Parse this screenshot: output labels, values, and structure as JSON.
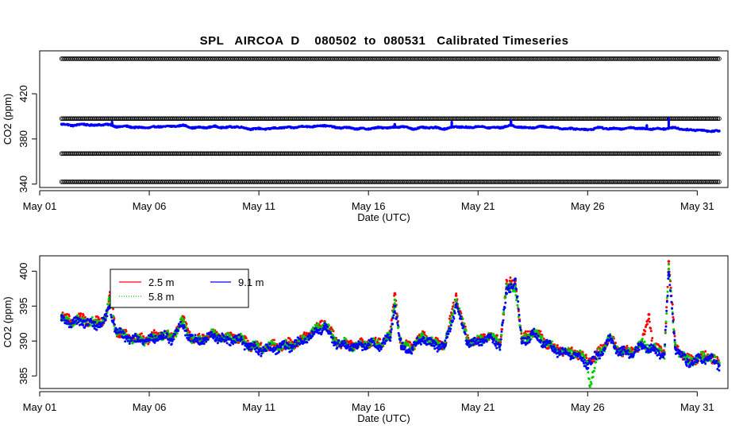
{
  "title": "SPL   AIRCOA  D    080502  to  080531   Calibrated Timeseries",
  "colors": {
    "reference": "#000000",
    "series_2_5": "#ff0000",
    "series_5_8": "#00cc00",
    "series_9_1": "#0000ff"
  },
  "chart_data": [
    {
      "type": "scatter",
      "title": "SPL   AIRCOA  D    080502  to  080531   Calibrated Timeseries",
      "xlabel": "Date (UTC)",
      "ylabel": "CO2 (ppm)",
      "x_ticks": [
        "May 01",
        "May 06",
        "May 11",
        "May 16",
        "May 21",
        "May 26",
        "May 31"
      ],
      "x_tick_days": [
        1,
        6,
        11,
        16,
        21,
        26,
        31
      ],
      "xlim": [
        1,
        32.4
      ],
      "y_ticks": [
        340,
        380,
        420
      ],
      "ylim": [
        337,
        458
      ],
      "reference_levels": [
        342,
        367,
        398,
        451
      ],
      "reference_x_range": [
        2,
        32
      ],
      "series": [
        {
          "color": "blue",
          "x": [
            2,
            2.5,
            3,
            3.5,
            4,
            4.5,
            5,
            5.5,
            6,
            6.5,
            7,
            7.5,
            8,
            8.5,
            9,
            9.5,
            10,
            10.5,
            11,
            11.5,
            12,
            12.5,
            13,
            13.5,
            14,
            14.5,
            15,
            15.5,
            16,
            16.5,
            17,
            17.5,
            18,
            18.5,
            19,
            19.5,
            20,
            20.5,
            21,
            21.5,
            22,
            22.5,
            23,
            23.5,
            24,
            24.5,
            25,
            25.5,
            26,
            26.5,
            27,
            27.5,
            28,
            28.5,
            29,
            29.5,
            30,
            30.5,
            31,
            31.5,
            32
          ],
          "y": [
            393,
            392,
            393,
            392,
            393,
            391,
            391,
            390,
            390,
            391,
            391,
            392,
            390,
            390,
            391,
            390,
            391,
            389,
            389,
            389,
            390,
            390,
            391,
            391,
            392,
            390,
            390,
            389,
            389,
            390,
            390,
            391,
            389,
            390,
            390,
            389,
            391,
            390,
            391,
            390,
            390,
            392,
            390,
            390,
            391,
            390,
            389,
            389,
            388,
            390,
            389,
            389,
            390,
            389,
            389,
            389,
            390,
            388,
            388,
            387,
            387
          ]
        }
      ],
      "spikes": [
        {
          "x": 4.3,
          "y": 395
        },
        {
          "x": 17.2,
          "y": 393
        },
        {
          "x": 19.8,
          "y": 395
        },
        {
          "x": 22.5,
          "y": 396
        },
        {
          "x": 28.7,
          "y": 392
        },
        {
          "x": 29.7,
          "y": 398
        }
      ]
    },
    {
      "type": "scatter",
      "xlabel": "Date (UTC)",
      "ylabel": "CO2 (ppm)",
      "x_ticks": [
        "May 01",
        "May 06",
        "May 11",
        "May 16",
        "May 21",
        "May 26",
        "May 31"
      ],
      "x_tick_days": [
        1,
        6,
        11,
        16,
        21,
        26,
        31
      ],
      "xlim": [
        1,
        32.4
      ],
      "y_ticks": [
        385,
        390,
        395,
        400
      ],
      "ylim": [
        383.2,
        402.2
      ],
      "legend_position": "top-left",
      "series": [
        {
          "name": "2.5 m",
          "color": "red",
          "x": [
            2,
            2.5,
            3,
            3.5,
            4,
            4.2,
            4.5,
            5,
            5.5,
            6,
            6.5,
            7,
            7.5,
            8,
            8.5,
            9,
            9.5,
            10,
            10.5,
            11,
            11.5,
            12,
            12.5,
            13,
            13.5,
            14,
            14.5,
            15,
            15.5,
            16,
            16.5,
            17,
            17.2,
            17.5,
            18,
            18.5,
            19,
            19.5,
            20,
            20.5,
            21,
            21.5,
            22,
            22.3,
            22.7,
            23,
            23.5,
            24,
            24.5,
            25,
            25.5,
            26,
            26.5,
            27,
            27.5,
            28,
            28.5,
            28.8,
            29,
            29.5,
            29.7,
            30,
            30.5,
            31,
            31.5,
            32
          ],
          "y": [
            393.5,
            393,
            393.2,
            392.5,
            393.4,
            396.5,
            391.5,
            390.8,
            390.2,
            390.4,
            391,
            390.6,
            393,
            390.2,
            390.5,
            391,
            390.4,
            390.6,
            389.6,
            389,
            389.2,
            389.4,
            389.6,
            390.2,
            391.5,
            392.8,
            390,
            389.6,
            389.4,
            389.9,
            389.6,
            391,
            396.8,
            389.3,
            389.2,
            391,
            389.6,
            389.6,
            396.5,
            390.3,
            390,
            391,
            389.7,
            398.2,
            398.6,
            390,
            391.5,
            390.1,
            389,
            388.5,
            388.4,
            387,
            388.3,
            390.4,
            388.7,
            388.4,
            389.7,
            393.8,
            389,
            388.4,
            401.4,
            389.4,
            387.3,
            387.5,
            388,
            386.8
          ]
        },
        {
          "name": "5.8 m",
          "color": "green",
          "x": [
            2,
            2.5,
            3,
            3.5,
            4,
            4.2,
            4.5,
            5,
            5.5,
            6,
            6.5,
            7,
            7.5,
            8,
            8.5,
            9,
            9.5,
            10,
            10.5,
            11,
            11.5,
            12,
            12.5,
            13,
            13.5,
            14,
            14.5,
            15,
            15.5,
            16,
            16.5,
            17,
            17.2,
            17.5,
            18,
            18.5,
            19,
            19.5,
            20,
            20.5,
            21,
            21.5,
            22,
            22.3,
            22.7,
            23,
            23.5,
            24,
            24.5,
            25,
            25.5,
            26,
            26.1,
            26.5,
            27,
            27.5,
            28,
            28.5,
            29,
            29.5,
            29.7,
            30,
            30.5,
            31,
            31.5,
            32
          ],
          "y": [
            393.2,
            392.8,
            393,
            392.4,
            393.2,
            395.8,
            391.4,
            390.7,
            390.1,
            390.3,
            390.9,
            390.5,
            392.6,
            390.1,
            390.4,
            390.9,
            390.3,
            390.5,
            389.5,
            388.9,
            389.1,
            389.3,
            389.5,
            390.1,
            391.3,
            392.5,
            389.9,
            389.5,
            389.3,
            389.8,
            389.5,
            390.8,
            395.9,
            389.2,
            389.1,
            390.8,
            389.5,
            389.5,
            395.9,
            390.2,
            389.9,
            390.8,
            389.6,
            397.5,
            397.9,
            389.9,
            391.3,
            390,
            388.9,
            388.4,
            388.3,
            386.9,
            383.6,
            388.2,
            390.3,
            388.6,
            388.3,
            389.5,
            388.9,
            388.3,
            400.3,
            389.3,
            387.2,
            387.4,
            387.9,
            386.7
          ]
        },
        {
          "name": "9.1 m",
          "color": "blue",
          "x": [
            2,
            2.5,
            3,
            3.5,
            4,
            4.2,
            4.5,
            5,
            5.5,
            6,
            6.5,
            7,
            7.5,
            8,
            8.5,
            9,
            9.5,
            10,
            10.5,
            11,
            11.5,
            12,
            12.5,
            13,
            13.5,
            14,
            14.5,
            15,
            15.5,
            16,
            16.5,
            17,
            17.2,
            17.5,
            18,
            18.5,
            19,
            19.5,
            20,
            20.5,
            21,
            21.5,
            22,
            22.3,
            22.7,
            23,
            23.5,
            24,
            24.5,
            25,
            25.5,
            26,
            26.5,
            27,
            27.5,
            28,
            28.5,
            29,
            29.5,
            29.7,
            30,
            30.5,
            31,
            31.5,
            32
          ],
          "y": [
            393,
            392.6,
            392.8,
            392.2,
            393,
            395,
            391.2,
            390.5,
            390,
            390.1,
            390.7,
            390.3,
            392.2,
            390,
            390.2,
            390.7,
            390.1,
            390.3,
            389.3,
            388.7,
            388.9,
            389.1,
            389.3,
            389.9,
            391,
            392.1,
            389.7,
            389.3,
            389.1,
            389.6,
            389.3,
            390.5,
            395,
            389,
            388.9,
            390.5,
            389.3,
            389.3,
            395.2,
            390,
            389.7,
            390.5,
            389.4,
            396.8,
            398.9,
            389.7,
            391,
            389.8,
            388.7,
            388.2,
            388.1,
            386.7,
            388,
            390.1,
            388.4,
            388.1,
            389.2,
            388.7,
            388.1,
            399.5,
            389.1,
            387,
            387.2,
            387.7,
            386.5
          ]
        }
      ]
    }
  ]
}
